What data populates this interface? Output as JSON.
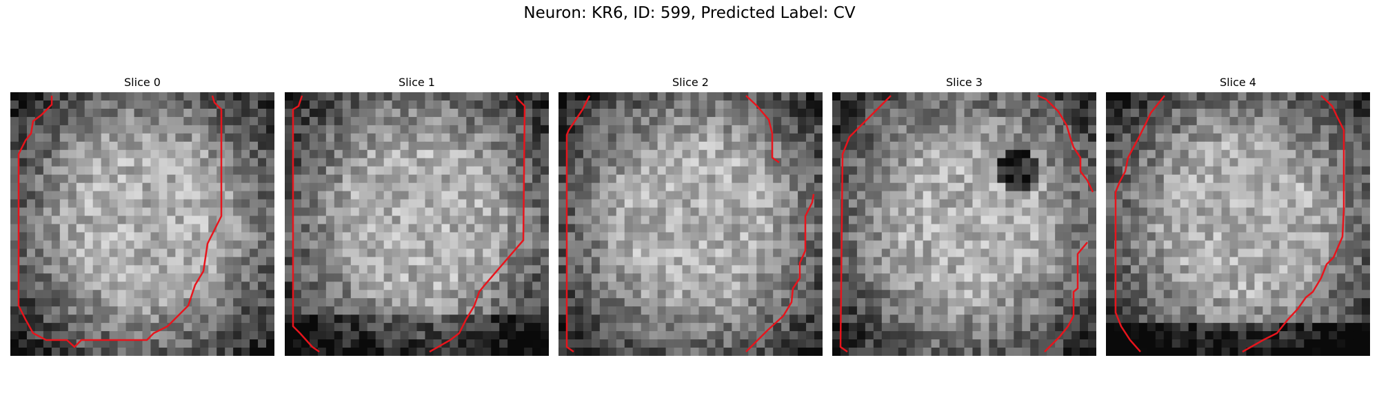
{
  "figure": {
    "title": "Neuron: KR6, ID: 599, Predicted Label: CV",
    "contour_color": "#e8141c",
    "colormap": "gray",
    "slices": [
      {
        "label": "Slice 0"
      },
      {
        "label": "Slice 1"
      },
      {
        "label": "Slice 2"
      },
      {
        "label": "Slice 3"
      },
      {
        "label": "Slice 4"
      }
    ]
  }
}
